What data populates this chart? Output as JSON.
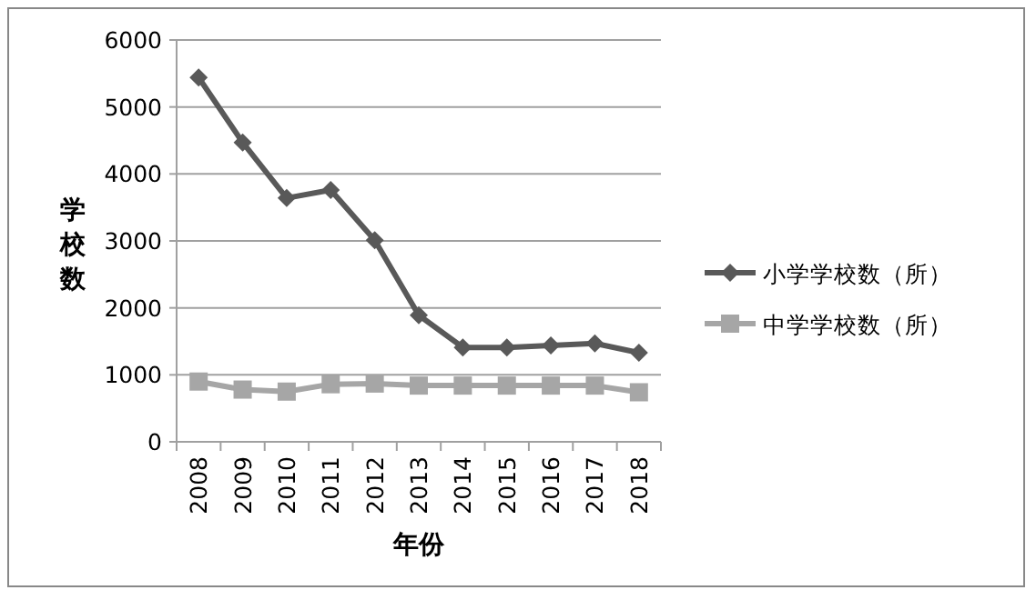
{
  "chart_data": {
    "type": "line",
    "xlabel": "年份",
    "ylabel": "学校数",
    "categories": [
      "2008",
      "2009",
      "2010",
      "2011",
      "2012",
      "2013",
      "2014",
      "2015",
      "2016",
      "2017",
      "2018"
    ],
    "series": [
      {
        "name": "小学学校数（所）",
        "color": "#595959",
        "marker": "diamond",
        "values": [
          5440,
          4470,
          3640,
          3760,
          3010,
          1890,
          1410,
          1410,
          1440,
          1470,
          1330
        ]
      },
      {
        "name": "中学学校数（所）",
        "color": "#a6a6a6",
        "marker": "square",
        "values": [
          900,
          780,
          750,
          860,
          870,
          840,
          840,
          840,
          840,
          840,
          740
        ]
      }
    ],
    "ylim": [
      0,
      6000
    ],
    "yticks": [
      0,
      1000,
      2000,
      3000,
      4000,
      5000,
      6000
    ],
    "grid": "y",
    "legend": "right"
  }
}
